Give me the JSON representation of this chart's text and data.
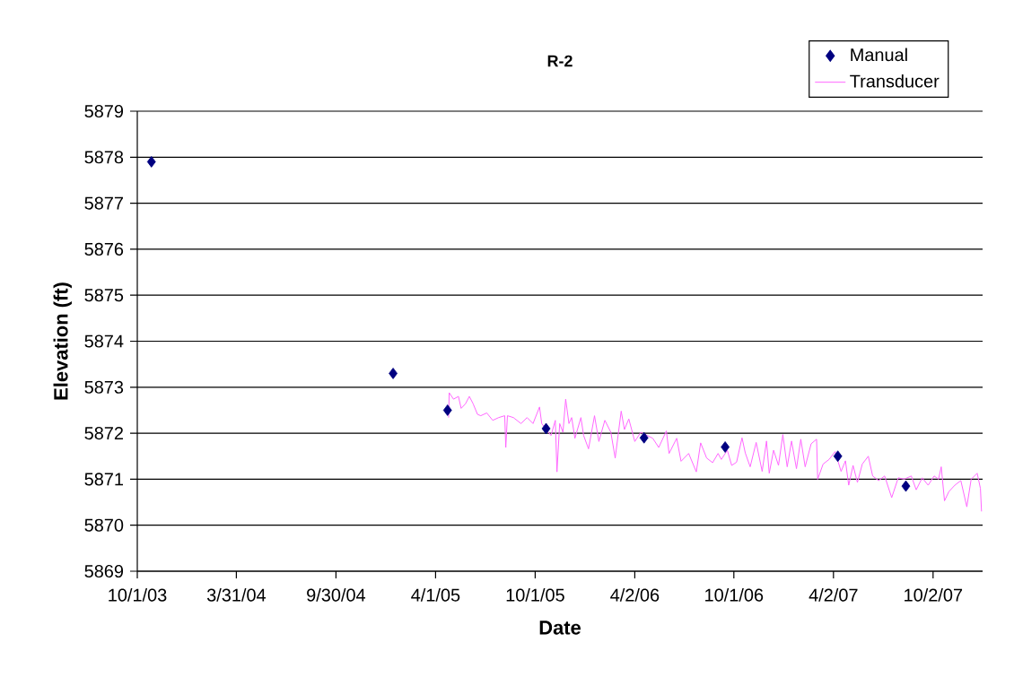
{
  "chart_data": {
    "type": "scatter",
    "title": "R-2",
    "xlabel": "Date",
    "ylabel": "Elevation (ft)",
    "xlim": [
      "2003-10-01",
      "2008-01-01"
    ],
    "ylim": [
      5869,
      5879
    ],
    "xticks": [
      {
        "value": "2003-10-01",
        "label": "10/1/03"
      },
      {
        "value": "2004-03-31",
        "label": "3/31/04"
      },
      {
        "value": "2004-09-30",
        "label": "9/30/04"
      },
      {
        "value": "2005-04-01",
        "label": "4/1/05"
      },
      {
        "value": "2005-10-01",
        "label": "10/1/05"
      },
      {
        "value": "2006-04-02",
        "label": "4/2/06"
      },
      {
        "value": "2006-10-01",
        "label": "10/1/06"
      },
      {
        "value": "2007-04-02",
        "label": "4/2/07"
      },
      {
        "value": "2007-10-02",
        "label": "10/2/07"
      }
    ],
    "yticks": [
      5869,
      5870,
      5871,
      5872,
      5873,
      5874,
      5875,
      5876,
      5877,
      5878,
      5879
    ],
    "grid": "y",
    "legend": "top right",
    "series": [
      {
        "name": "Manual",
        "marker": "diamond",
        "color": "#000080",
        "x": [
          "2003-10-27",
          "2005-01-13",
          "2005-04-23",
          "2005-10-21",
          "2006-04-19",
          "2006-09-15",
          "2007-04-10",
          "2007-08-13"
        ],
        "values": [
          5877.9,
          5873.3,
          5872.5,
          5872.1,
          5871.9,
          5871.7,
          5871.5,
          5870.85
        ]
      },
      {
        "name": "Transducer",
        "type": "line",
        "color": "#ff66ff",
        "x": [
          "2005-04-25",
          "2005-04-26",
          "2005-05-04",
          "2005-05-13",
          "2005-05-18",
          "2005-05-26",
          "2005-06-02",
          "2005-06-09",
          "2005-06-17",
          "2005-06-23",
          "2005-07-04",
          "2005-07-15",
          "2005-07-26",
          "2005-08-06",
          "2005-08-08",
          "2005-08-11",
          "2005-08-22",
          "2005-09-05",
          "2005-09-16",
          "2005-09-27",
          "2005-10-09",
          "2005-10-13",
          "2005-10-30",
          "2005-11-07",
          "2005-11-10",
          "2005-11-15",
          "2005-11-21",
          "2005-11-26",
          "2005-12-02",
          "2005-12-07",
          "2005-12-13",
          "2005-12-24",
          "2005-12-29",
          "2006-01-07",
          "2006-01-18",
          "2006-01-26",
          "2006-02-06",
          "2006-02-17",
          "2006-02-25",
          "2006-03-08",
          "2006-03-14",
          "2006-03-22",
          "2006-04-02",
          "2006-04-13",
          "2006-05-05",
          "2006-05-16",
          "2006-05-30",
          "2006-06-04",
          "2006-06-18",
          "2006-06-26",
          "2006-07-10",
          "2006-07-24",
          "2006-08-01",
          "2006-08-12",
          "2006-08-23",
          "2006-09-02",
          "2006-09-08",
          "2006-09-19",
          "2006-09-27",
          "2006-10-06",
          "2006-10-16",
          "2006-10-22",
          "2006-10-31",
          "2006-11-11",
          "2006-11-22",
          "2006-11-30",
          "2006-12-05",
          "2006-12-13",
          "2006-12-22",
          "2006-12-30",
          "2007-01-07",
          "2007-01-15",
          "2007-01-24",
          "2007-02-01",
          "2007-02-09",
          "2007-02-20",
          "2007-03-02",
          "2007-03-04",
          "2007-03-14",
          "2007-03-25",
          "2007-04-05",
          "2007-04-16",
          "2007-04-24",
          "2007-04-30",
          "2007-05-08",
          "2007-05-16",
          "2007-05-25",
          "2007-06-05",
          "2007-06-13",
          "2007-06-24",
          "2007-07-05",
          "2007-07-18",
          "2007-07-30",
          "2007-08-10",
          "2007-08-23",
          "2007-09-01",
          "2007-09-12",
          "2007-09-23",
          "2007-10-04",
          "2007-10-12",
          "2007-10-17",
          "2007-10-23",
          "2007-10-31",
          "2007-11-11",
          "2007-11-22",
          "2007-12-03",
          "2007-12-11",
          "2007-12-22",
          "2007-12-28",
          "2007-12-30"
        ],
        "values": [
          5872.34,
          5872.88,
          5872.74,
          5872.8,
          5872.54,
          5872.64,
          5872.8,
          5872.64,
          5872.41,
          5872.38,
          5872.44,
          5872.28,
          5872.34,
          5872.38,
          5871.69,
          5872.38,
          5872.34,
          5872.21,
          5872.34,
          5872.21,
          5872.57,
          5872.21,
          5871.95,
          5872.28,
          5871.16,
          5872.21,
          5872.02,
          5872.74,
          5872.21,
          5872.34,
          5871.89,
          5872.34,
          5871.95,
          5871.66,
          5872.38,
          5871.82,
          5872.28,
          5872.02,
          5871.46,
          5872.48,
          5872.08,
          5872.31,
          5871.82,
          5872.02,
          5871.89,
          5871.69,
          5872.05,
          5871.56,
          5871.89,
          5871.39,
          5871.56,
          5871.16,
          5871.79,
          5871.46,
          5871.36,
          5871.56,
          5871.43,
          5871.63,
          5871.3,
          5871.37,
          5871.9,
          5871.57,
          5871.27,
          5871.8,
          5871.17,
          5871.83,
          5871.13,
          5871.63,
          5871.3,
          5871.97,
          5871.27,
          5871.83,
          5871.23,
          5871.87,
          5871.27,
          5871.77,
          5871.87,
          5871.0,
          5871.33,
          5871.43,
          5871.6,
          5871.17,
          5871.4,
          5870.87,
          5871.3,
          5870.93,
          5871.33,
          5871.5,
          5871.07,
          5870.97,
          5871.07,
          5870.6,
          5871.03,
          5871.0,
          5871.07,
          5870.77,
          5871.03,
          5870.87,
          5871.07,
          5871.0,
          5871.27,
          5870.53,
          5870.73,
          5870.87,
          5870.97,
          5870.4,
          5871.0,
          5871.13,
          5870.8,
          5870.3
        ]
      }
    ]
  }
}
